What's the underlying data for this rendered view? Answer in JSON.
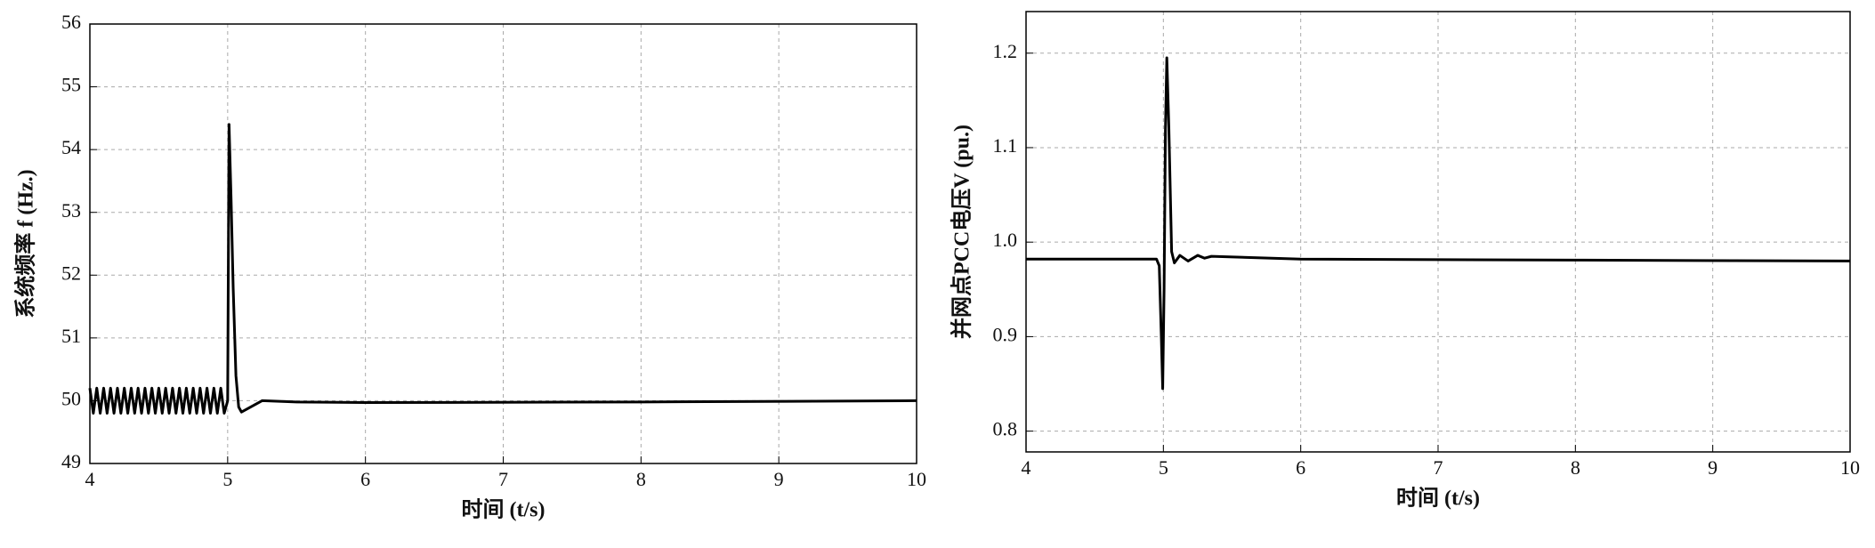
{
  "chart_data": [
    {
      "type": "line",
      "ylabel": "系统频率 f (Hz.)",
      "xlabel": "时间 (t/s)",
      "color": "#000000",
      "grid": true,
      "xlim": [
        4,
        10
      ],
      "xticks": [
        4,
        5,
        6,
        7,
        8,
        9,
        10
      ],
      "ylim": [
        49,
        56
      ],
      "yticks": [
        49,
        50,
        51,
        52,
        53,
        54,
        55,
        56
      ],
      "x": [
        4,
        4.025,
        4.05,
        4.075,
        4.1,
        4.125,
        4.15,
        4.175,
        4.2,
        4.225,
        4.25,
        4.275,
        4.3,
        4.325,
        4.35,
        4.375,
        4.4,
        4.425,
        4.45,
        4.475,
        4.5,
        4.525,
        4.55,
        4.575,
        4.6,
        4.625,
        4.65,
        4.675,
        4.7,
        4.725,
        4.75,
        4.775,
        4.8,
        4.825,
        4.85,
        4.875,
        4.9,
        4.925,
        4.95,
        4.975,
        5.0,
        5.01,
        5.025,
        5.04,
        5.06,
        5.08,
        5.1,
        5.15,
        5.25,
        5.5,
        6,
        8,
        10
      ],
      "values": [
        50.2,
        49.8,
        50.2,
        49.8,
        50.2,
        49.8,
        50.2,
        49.8,
        50.2,
        49.8,
        50.2,
        49.8,
        50.2,
        49.8,
        50.2,
        49.8,
        50.2,
        49.8,
        50.2,
        49.8,
        50.2,
        49.8,
        50.2,
        49.8,
        50.2,
        49.8,
        50.2,
        49.8,
        50.2,
        49.8,
        50.2,
        49.8,
        50.2,
        49.8,
        50.2,
        49.8,
        50.2,
        49.8,
        50.2,
        49.8,
        50.0,
        54.4,
        53.2,
        51.8,
        50.4,
        49.9,
        49.82,
        49.88,
        50.0,
        49.98,
        49.97,
        49.98,
        50.0
      ]
    },
    {
      "type": "line",
      "ylabel": "并网点PCC电压V (pu.)",
      "xlabel": "时间 (t/s)",
      "color": "#000000",
      "grid": true,
      "xlim": [
        4,
        10
      ],
      "xticks": [
        4,
        5,
        6,
        7,
        8,
        9,
        10
      ],
      "ylim": [
        0.778,
        1.244
      ],
      "yticks": [
        0.8,
        0.9,
        {
          "value": 1,
          "label": "1.0"
        },
        1.1,
        1.2
      ],
      "x": [
        4,
        4.95,
        4.97,
        4.985,
        4.995,
        5.005,
        5.015,
        5.025,
        5.04,
        5.06,
        5.08,
        5.12,
        5.18,
        5.25,
        5.3,
        5.35,
        6,
        8,
        10
      ],
      "values": [
        0.982,
        0.982,
        0.975,
        0.9,
        0.845,
        0.95,
        1.12,
        1.195,
        1.12,
        0.99,
        0.978,
        0.986,
        0.98,
        0.986,
        0.983,
        0.985,
        0.982,
        0.981,
        0.98
      ]
    }
  ]
}
